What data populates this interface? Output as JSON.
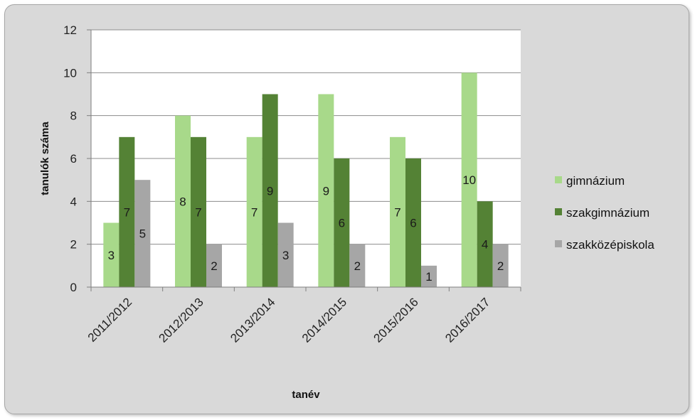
{
  "chart_data": {
    "type": "bar",
    "title": "",
    "xlabel": "tanév",
    "ylabel": "tanulók száma",
    "ylim": [
      0,
      12
    ],
    "yticks": [
      0,
      2,
      4,
      6,
      8,
      10,
      12
    ],
    "grid": true,
    "legend_position": "right",
    "categories": [
      "2011/2012",
      "2012/2013",
      "2013/2014",
      "2014/2015",
      "2015/2016",
      "2016/2017"
    ],
    "series": [
      {
        "name": "gimnázium",
        "color": "#a8d98a",
        "values": [
          3,
          8,
          7,
          9,
          7,
          10
        ]
      },
      {
        "name": "szakgimnázium",
        "color": "#548235",
        "values": [
          7,
          7,
          9,
          6,
          6,
          4
        ]
      },
      {
        "name": "szakközépiskola",
        "color": "#a6a6a6",
        "values": [
          5,
          2,
          3,
          2,
          1,
          2
        ]
      }
    ]
  }
}
